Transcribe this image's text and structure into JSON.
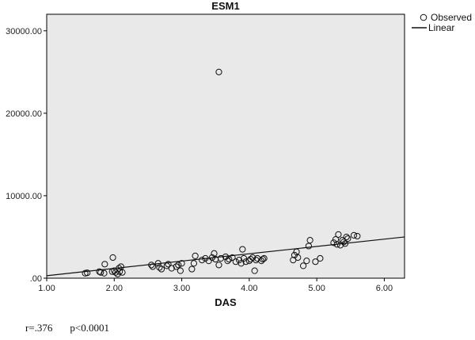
{
  "stats": {
    "r": "r=.376",
    "p": "p<0.0001"
  },
  "chart_data": {
    "type": "scatter",
    "title": "ESM1",
    "xlabel": "DAS",
    "ylabel": "",
    "xlim": [
      1.0,
      6.3
    ],
    "ylim": [
      0,
      32000
    ],
    "x_ticks": [
      1.0,
      2.0,
      3.0,
      4.0,
      5.0,
      6.0
    ],
    "x_tick_labels": [
      "1.00",
      "2.00",
      "3.00",
      "4.00",
      "5.00",
      "6.00"
    ],
    "y_ticks": [
      0,
      10000,
      20000,
      30000
    ],
    "y_tick_labels": [
      ".00",
      "10000.00",
      "20000.00",
      "30000.00"
    ],
    "grid": false,
    "legend": {
      "placement": "outside-top-right",
      "entries": [
        {
          "label": "Observed",
          "marker": "open-circle"
        },
        {
          "label": "Linear",
          "marker": "line"
        }
      ]
    },
    "colors": {
      "plot_background": "#e9e9e9",
      "marker": "#111111",
      "line": "#111111"
    },
    "series": [
      {
        "name": "Observed",
        "kind": "points",
        "points": [
          [
            1.57,
            600
          ],
          [
            1.6,
            650
          ],
          [
            1.78,
            800
          ],
          [
            1.8,
            700
          ],
          [
            1.85,
            600
          ],
          [
            1.86,
            1700
          ],
          [
            1.97,
            800
          ],
          [
            1.98,
            2500
          ],
          [
            2.0,
            900
          ],
          [
            2.02,
            700
          ],
          [
            2.05,
            500
          ],
          [
            2.07,
            1200
          ],
          [
            2.08,
            800
          ],
          [
            2.1,
            1400
          ],
          [
            2.12,
            700
          ],
          [
            2.55,
            1600
          ],
          [
            2.57,
            1400
          ],
          [
            2.65,
            1800
          ],
          [
            2.67,
            1300
          ],
          [
            2.7,
            1100
          ],
          [
            2.78,
            1500
          ],
          [
            2.8,
            1700
          ],
          [
            2.85,
            1200
          ],
          [
            2.92,
            1400
          ],
          [
            2.95,
            1600
          ],
          [
            2.98,
            900
          ],
          [
            3.0,
            1800
          ],
          [
            3.15,
            1100
          ],
          [
            3.18,
            1800
          ],
          [
            3.2,
            2700
          ],
          [
            3.3,
            2200
          ],
          [
            3.35,
            2400
          ],
          [
            3.4,
            2100
          ],
          [
            3.45,
            2500
          ],
          [
            3.48,
            3000
          ],
          [
            3.5,
            2300
          ],
          [
            3.55,
            1600
          ],
          [
            3.55,
            25000
          ],
          [
            3.58,
            2400
          ],
          [
            3.65,
            2600
          ],
          [
            3.68,
            2100
          ],
          [
            3.7,
            2300
          ],
          [
            3.75,
            2500
          ],
          [
            3.8,
            2000
          ],
          [
            3.85,
            2200
          ],
          [
            3.88,
            1800
          ],
          [
            3.9,
            3500
          ],
          [
            3.92,
            2400
          ],
          [
            3.95,
            2000
          ],
          [
            4.0,
            2100
          ],
          [
            4.02,
            2300
          ],
          [
            4.05,
            2500
          ],
          [
            4.08,
            900
          ],
          [
            4.1,
            2200
          ],
          [
            4.12,
            2400
          ],
          [
            4.18,
            2100
          ],
          [
            4.2,
            2300
          ],
          [
            4.22,
            2400
          ],
          [
            4.65,
            2200
          ],
          [
            4.67,
            2800
          ],
          [
            4.7,
            3200
          ],
          [
            4.72,
            2500
          ],
          [
            4.8,
            1500
          ],
          [
            4.85,
            2100
          ],
          [
            4.88,
            3900
          ],
          [
            4.9,
            4600
          ],
          [
            4.98,
            2000
          ],
          [
            5.05,
            2400
          ],
          [
            5.25,
            4300
          ],
          [
            5.28,
            4700
          ],
          [
            5.3,
            4100
          ],
          [
            5.32,
            5300
          ],
          [
            5.35,
            4000
          ],
          [
            5.38,
            4600
          ],
          [
            5.4,
            4400
          ],
          [
            5.42,
            4200
          ],
          [
            5.44,
            5000
          ],
          [
            5.46,
            4800
          ],
          [
            5.55,
            5200
          ],
          [
            5.6,
            5100
          ]
        ]
      },
      {
        "name": "Linear",
        "kind": "fit-line",
        "points": [
          [
            1.0,
            300
          ],
          [
            6.3,
            5000
          ]
        ]
      }
    ]
  }
}
